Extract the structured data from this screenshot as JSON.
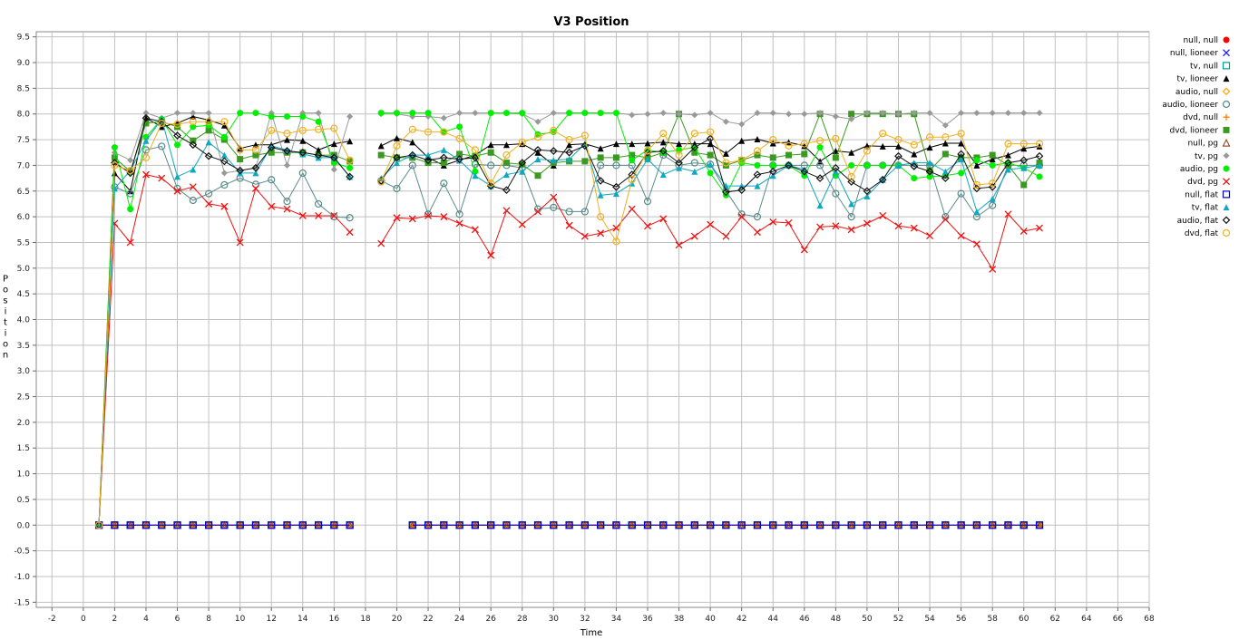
{
  "chart_data": {
    "type": "line",
    "title": "V3 Position",
    "xlabel": "Time",
    "ylabel": "Position",
    "xlim": [
      -3,
      68
    ],
    "ylim": [
      -1.6,
      9.6
    ],
    "grid": true,
    "legend_position": "right",
    "x_ticks": [
      "-2",
      "0",
      "2",
      "4",
      "6",
      "8",
      "10",
      "12",
      "14",
      "16",
      "18",
      "20",
      "22",
      "24",
      "26",
      "28",
      "30",
      "32",
      "34",
      "36",
      "38",
      "40",
      "42",
      "44",
      "46",
      "48",
      "50",
      "52",
      "54",
      "56",
      "58",
      "60",
      "62",
      "64",
      "66",
      "68"
    ],
    "y_ticks": [
      "9.5",
      "9.0",
      "8.5",
      "8.0",
      "7.5",
      "7.0",
      "6.5",
      "6.0",
      "5.5",
      "5.0",
      "4.5",
      "4.0",
      "3.5",
      "3.0",
      "2.5",
      "2.0",
      "1.5",
      "1.0",
      "0.5",
      "0.0",
      "-0.5",
      "-1.0",
      "-1.5"
    ],
    "x": [
      1,
      2,
      3,
      4,
      5,
      6,
      7,
      8,
      9,
      10,
      11,
      12,
      13,
      14,
      15,
      16,
      17,
      18,
      19,
      20,
      21,
      22,
      23,
      24,
      25,
      26,
      27,
      28,
      29,
      30,
      31,
      32,
      33,
      34,
      35,
      36,
      37,
      38,
      39,
      40,
      41,
      42,
      43,
      44,
      45,
      46,
      47,
      48,
      49,
      50,
      51,
      52,
      53,
      54,
      55,
      56,
      57,
      58,
      59,
      60,
      61
    ],
    "series": [
      {
        "name": "null, null",
        "color": "#ff0000",
        "marker": "circle-filled",
        "values": [
          0,
          0,
          0,
          0,
          0,
          0,
          0,
          0,
          0,
          0,
          0,
          0,
          0,
          0,
          0,
          0,
          0,
          null,
          null,
          null,
          0,
          0,
          0,
          0,
          0,
          0,
          0,
          0,
          0,
          0,
          0,
          0,
          0,
          0,
          0,
          0,
          0,
          0,
          0,
          0,
          0,
          0,
          0,
          0,
          0,
          0,
          0,
          0,
          0,
          0,
          0,
          0,
          0,
          0,
          0,
          0,
          0,
          0,
          0,
          0,
          0
        ]
      },
      {
        "name": "null, lioneer",
        "color": "#1a1aff",
        "marker": "x",
        "values": [
          0,
          0,
          0,
          0,
          0,
          0,
          0,
          0,
          0,
          0,
          0,
          0,
          0,
          0,
          0,
          0,
          0,
          null,
          null,
          null,
          0,
          0,
          0,
          0,
          0,
          0,
          0,
          0,
          0,
          0,
          0,
          0,
          0,
          0,
          0,
          0,
          0,
          0,
          0,
          0,
          0,
          0,
          0,
          0,
          0,
          0,
          0,
          0,
          0,
          0,
          0,
          0,
          0,
          0,
          0,
          0,
          0,
          0,
          0,
          0,
          0
        ]
      },
      {
        "name": "tv, null",
        "color": "#00a0a0",
        "marker": "square-open",
        "values": [
          0,
          0,
          0,
          0,
          0,
          0,
          0,
          0,
          0,
          0,
          0,
          0,
          0,
          0,
          0,
          0,
          0,
          null,
          null,
          null,
          0,
          0,
          0,
          0,
          0,
          0,
          0,
          0,
          0,
          0,
          0,
          0,
          0,
          0,
          0,
          0,
          0,
          0,
          0,
          0,
          0,
          0,
          0,
          0,
          0,
          0,
          0,
          0,
          0,
          0,
          0,
          0,
          0,
          0,
          0,
          0,
          0,
          0,
          0,
          0,
          0
        ]
      },
      {
        "name": "tv, lioneer",
        "color": "#000000",
        "marker": "triangle-filled",
        "values": [
          0,
          6.85,
          6.5,
          7.92,
          7.75,
          7.82,
          7.95,
          7.88,
          7.78,
          7.33,
          7.4,
          7.4,
          7.5,
          7.48,
          7.3,
          7.42,
          7.47,
          null,
          7.38,
          7.53,
          7.45,
          7.15,
          7.0,
          7.1,
          7.2,
          7.4,
          7.4,
          7.42,
          7.25,
          7.0,
          7.4,
          7.42,
          7.33,
          7.42,
          7.42,
          7.43,
          7.45,
          7.42,
          7.42,
          7.42,
          7.23,
          7.48,
          7.51,
          7.43,
          7.45,
          7.38,
          7.08,
          7.28,
          7.25,
          7.38,
          7.37,
          7.37,
          7.22,
          7.35,
          7.43,
          7.43,
          7.0,
          7.12,
          7.2,
          7.33,
          7.37
        ]
      },
      {
        "name": "audio, null",
        "color": "#ffa500",
        "marker": "diamond-open",
        "values": [
          0,
          0,
          0,
          0,
          0,
          0,
          0,
          0,
          0,
          0,
          0,
          0,
          0,
          0,
          0,
          0,
          0,
          null,
          null,
          null,
          0,
          0,
          0,
          0,
          0,
          0,
          0,
          0,
          0,
          0,
          0,
          0,
          0,
          0,
          0,
          0,
          0,
          0,
          0,
          0,
          0,
          0,
          0,
          0,
          0,
          0,
          0,
          0,
          0,
          0,
          0,
          0,
          0,
          0,
          0,
          0,
          0,
          0,
          0,
          0,
          0
        ]
      },
      {
        "name": "audio, lioneer",
        "color": "#5a8a8a",
        "marker": "circle-open",
        "values": [
          0,
          6.58,
          6.45,
          7.3,
          7.37,
          6.55,
          6.32,
          6.45,
          6.62,
          6.75,
          6.63,
          6.72,
          6.3,
          6.85,
          6.25,
          6.0,
          5.98,
          null,
          6.7,
          6.55,
          7.0,
          6.05,
          6.65,
          6.05,
          7.02,
          7.0,
          7.0,
          6.95,
          6.15,
          6.18,
          6.1,
          6.1,
          7.0,
          7.0,
          7.0,
          6.3,
          7.2,
          7.0,
          7.05,
          7.02,
          6.5,
          6.05,
          6.0,
          7.0,
          7.0,
          7.0,
          7.0,
          6.45,
          6.0,
          7.0,
          7.0,
          7.0,
          7.0,
          7.0,
          6.0,
          6.45,
          6.0,
          6.22,
          7.0,
          7.0,
          7.0
        ]
      },
      {
        "name": "dvd, null",
        "color": "#ff8000",
        "marker": "plus",
        "values": [
          0,
          0,
          0,
          0,
          0,
          0,
          0,
          0,
          0,
          0,
          0,
          0,
          0,
          0,
          0,
          0,
          0,
          null,
          null,
          null,
          0,
          0,
          0,
          0,
          0,
          0,
          0,
          0,
          0,
          0,
          0,
          0,
          0,
          0,
          0,
          0,
          0,
          0,
          0,
          0,
          0,
          0,
          0,
          0,
          0,
          0,
          0,
          0,
          0,
          0,
          0,
          0,
          0,
          0,
          0,
          0,
          0,
          0,
          0,
          0,
          0
        ]
      },
      {
        "name": "dvd, lioneer",
        "color": "#3a9a20",
        "marker": "square-filled",
        "values": [
          0,
          7.15,
          6.88,
          7.82,
          7.85,
          7.75,
          7.48,
          7.68,
          7.5,
          7.12,
          7.2,
          7.25,
          7.25,
          7.25,
          7.2,
          7.2,
          7.08,
          null,
          7.2,
          7.15,
          7.15,
          7.05,
          7.05,
          7.22,
          7.18,
          7.25,
          7.05,
          7.02,
          6.8,
          7.05,
          7.08,
          7.08,
          7.15,
          7.15,
          7.2,
          7.15,
          7.25,
          8.0,
          7.25,
          7.2,
          7.0,
          7.1,
          7.2,
          7.15,
          7.2,
          7.22,
          8.0,
          7.15,
          8.0,
          8.0,
          8.0,
          8.0,
          8.0,
          6.9,
          7.22,
          7.15,
          7.15,
          7.2,
          7.0,
          6.62,
          7.05
        ]
      },
      {
        "name": "null, pg",
        "color": "#a05030",
        "marker": "triangle-open",
        "values": [
          0,
          0,
          0,
          0,
          0,
          0,
          0,
          0,
          0,
          0,
          0,
          0,
          0,
          0,
          0,
          0,
          0,
          null,
          null,
          null,
          0,
          0,
          0,
          0,
          0,
          0,
          0,
          0,
          0,
          0,
          0,
          0,
          0,
          0,
          0,
          0,
          0,
          0,
          0,
          0,
          0,
          0,
          0,
          0,
          0,
          0,
          0,
          0,
          0,
          0,
          0,
          0,
          0,
          0,
          0,
          0,
          0,
          0,
          0,
          0,
          0
        ]
      },
      {
        "name": "tv, pg",
        "color": "#999999",
        "marker": "diamond-filled",
        "values": [
          0,
          7.25,
          7.1,
          8.02,
          7.92,
          8.02,
          8.02,
          8.02,
          6.85,
          6.9,
          6.95,
          8.02,
          7.0,
          8.02,
          8.02,
          6.92,
          7.95,
          null,
          8.0,
          8.0,
          7.95,
          7.95,
          7.92,
          8.02,
          8.02,
          8.02,
          8.02,
          8.0,
          7.85,
          8.02,
          8.02,
          8.02,
          8.02,
          8.02,
          7.98,
          8.0,
          8.02,
          8.0,
          7.98,
          8.02,
          7.85,
          7.8,
          8.02,
          8.02,
          8.0,
          8.0,
          8.02,
          7.95,
          7.9,
          8.02,
          8.02,
          8.0,
          8.02,
          8.02,
          7.78,
          8.02,
          8.02,
          8.02,
          8.02,
          8.02,
          8.02
        ]
      },
      {
        "name": "audio, pg",
        "color": "#00ee00",
        "marker": "circle-filled",
        "values": [
          0,
          7.35,
          6.15,
          7.55,
          7.9,
          7.4,
          7.75,
          7.78,
          7.55,
          8.02,
          8.02,
          7.95,
          7.95,
          7.95,
          7.85,
          7.05,
          6.95,
          null,
          8.02,
          8.02,
          8.02,
          8.02,
          7.65,
          7.75,
          6.88,
          8.02,
          8.02,
          8.02,
          7.6,
          7.65,
          8.02,
          8.02,
          8.02,
          8.02,
          7.1,
          7.3,
          7.25,
          7.3,
          7.35,
          6.85,
          6.42,
          7.05,
          7.0,
          7.0,
          7.0,
          6.8,
          7.35,
          6.8,
          7.0,
          7.0,
          7.0,
          7.0,
          6.75,
          6.78,
          6.8,
          6.85,
          7.1,
          7.0,
          7.05,
          6.95,
          6.78
        ]
      },
      {
        "name": "dvd, pg",
        "color": "#ee1111",
        "marker": "x",
        "values": [
          0,
          5.87,
          5.5,
          6.82,
          6.75,
          6.5,
          6.58,
          6.25,
          6.2,
          5.5,
          6.55,
          6.2,
          6.15,
          6.02,
          6.02,
          6.02,
          5.7,
          null,
          5.48,
          5.98,
          5.96,
          6.02,
          6.0,
          5.87,
          5.75,
          5.25,
          6.12,
          5.85,
          6.1,
          6.38,
          5.83,
          5.62,
          5.68,
          5.78,
          6.15,
          5.82,
          5.96,
          5.45,
          5.62,
          5.85,
          5.62,
          6.0,
          5.7,
          5.9,
          5.88,
          5.36,
          5.8,
          5.82,
          5.75,
          5.87,
          6.02,
          5.82,
          5.78,
          5.63,
          5.95,
          5.63,
          5.47,
          4.98,
          6.05,
          5.72,
          5.78
        ]
      },
      {
        "name": "null, flat",
        "color": "#0000cc",
        "marker": "square-open",
        "values": [
          0,
          0,
          0,
          0,
          0,
          0,
          0,
          0,
          0,
          0,
          0,
          0,
          0,
          0,
          0,
          0,
          0,
          null,
          null,
          null,
          0,
          0,
          0,
          0,
          0,
          0,
          0,
          0,
          0,
          0,
          0,
          0,
          0,
          0,
          0,
          0,
          0,
          0,
          0,
          0,
          0,
          0,
          0,
          0,
          0,
          0,
          0,
          0,
          0,
          0,
          0,
          0,
          0,
          0,
          0,
          0,
          0,
          0,
          0,
          0,
          0
        ]
      },
      {
        "name": "tv, flat",
        "color": "#10a8c0",
        "marker": "triangle-filled",
        "values": [
          0,
          6.55,
          6.9,
          7.48,
          7.9,
          6.78,
          6.92,
          7.45,
          7.2,
          6.85,
          6.85,
          7.38,
          7.3,
          7.22,
          7.15,
          7.15,
          6.78,
          null,
          6.75,
          7.05,
          7.2,
          7.2,
          7.3,
          7.1,
          6.8,
          6.6,
          6.82,
          6.88,
          7.12,
          7.1,
          7.12,
          7.42,
          6.42,
          6.45,
          6.65,
          7.12,
          6.82,
          6.95,
          6.88,
          7.02,
          6.6,
          6.6,
          6.6,
          6.8,
          7.0,
          6.92,
          6.22,
          6.88,
          6.25,
          6.4,
          6.72,
          7.0,
          7.05,
          7.05,
          6.88,
          7.12,
          6.1,
          6.35,
          6.92,
          6.95,
          7.0
        ]
      },
      {
        "name": "audio, flat",
        "color": "#111111",
        "marker": "diamond-open",
        "values": [
          0,
          7.05,
          6.85,
          7.92,
          7.85,
          7.58,
          7.4,
          7.18,
          7.08,
          6.9,
          6.95,
          7.35,
          7.28,
          7.25,
          7.2,
          7.15,
          6.78,
          null,
          6.7,
          7.15,
          7.2,
          7.1,
          7.15,
          7.12,
          7.15,
          6.6,
          6.52,
          7.05,
          7.3,
          7.28,
          7.25,
          7.38,
          6.7,
          6.58,
          6.82,
          7.25,
          7.28,
          7.05,
          7.35,
          7.52,
          6.48,
          6.52,
          6.82,
          6.88,
          7.0,
          6.88,
          6.75,
          6.95,
          6.68,
          6.5,
          6.72,
          7.18,
          6.98,
          6.88,
          6.75,
          7.22,
          6.55,
          6.58,
          7.05,
          7.1,
          7.18
        ]
      },
      {
        "name": "dvd, flat",
        "color": "#f0b020",
        "marker": "circle-open",
        "values": [
          0,
          7.0,
          6.9,
          7.15,
          7.82,
          7.8,
          7.85,
          7.85,
          7.85,
          7.3,
          7.3,
          7.68,
          7.62,
          7.68,
          7.7,
          7.72,
          7.1,
          null,
          6.68,
          7.38,
          7.7,
          7.65,
          7.65,
          7.52,
          7.3,
          6.65,
          7.2,
          7.45,
          7.55,
          7.68,
          7.5,
          7.58,
          6.0,
          5.52,
          6.72,
          7.28,
          7.62,
          7.2,
          7.62,
          7.65,
          7.05,
          7.1,
          7.28,
          7.5,
          7.38,
          7.42,
          7.48,
          7.52,
          6.78,
          7.28,
          7.62,
          7.5,
          7.4,
          7.55,
          7.55,
          7.62,
          6.62,
          6.65,
          7.42,
          7.42,
          7.42
        ]
      }
    ]
  }
}
